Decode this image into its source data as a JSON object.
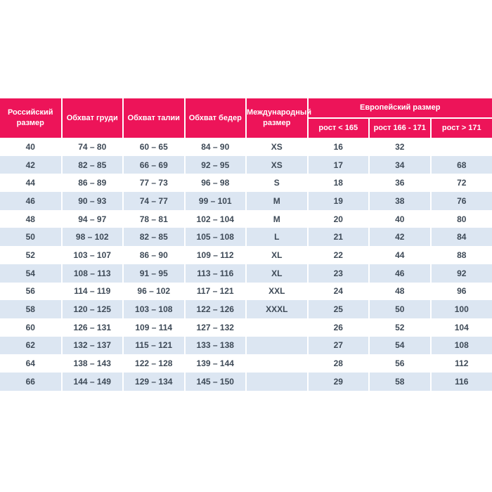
{
  "colors": {
    "header_bg": "#ed1459",
    "header_text": "#ffffff",
    "row_stripe_bg": "#dce6f2",
    "row_plain_bg": "#ffffff",
    "cell_text": "#3e4a57",
    "separator": "#ffffff"
  },
  "chart_data": {
    "type": "table",
    "columns": [
      "Российский размер",
      "Обхват груди",
      "Обхват талии",
      "Обхват бедер",
      "Международный размер",
      "Европейский размер"
    ],
    "height_subcolumns": [
      "рост < 165",
      "рост 166 - 171",
      "рост > 171"
    ],
    "rows": [
      [
        "40",
        "74 – 80",
        "60 – 65",
        "84 – 90",
        "XS",
        "16",
        "32",
        ""
      ],
      [
        "42",
        "82 – 85",
        "66 – 69",
        "92 – 95",
        "XS",
        "17",
        "34",
        "68"
      ],
      [
        "44",
        "86 – 89",
        "77 – 73",
        "96 – 98",
        "S",
        "18",
        "36",
        "72"
      ],
      [
        "46",
        "90 – 93",
        "74 – 77",
        "99 – 101",
        "M",
        "19",
        "38",
        "76"
      ],
      [
        "48",
        "94 – 97",
        "78 – 81",
        "102 – 104",
        "M",
        "20",
        "40",
        "80"
      ],
      [
        "50",
        "98 – 102",
        "82 – 85",
        "105 – 108",
        "L",
        "21",
        "42",
        "84"
      ],
      [
        "52",
        "103 – 107",
        "86 – 90",
        "109 – 112",
        "XL",
        "22",
        "44",
        "88"
      ],
      [
        "54",
        "108 – 113",
        "91 – 95",
        "113 – 116",
        "XL",
        "23",
        "46",
        "92"
      ],
      [
        "56",
        "114 – 119",
        "96 – 102",
        "117 – 121",
        "XXL",
        "24",
        "48",
        "96"
      ],
      [
        "58",
        "120 – 125",
        "103 – 108",
        "122 – 126",
        "XXXL",
        "25",
        "50",
        "100"
      ],
      [
        "60",
        "126 – 131",
        "109 – 114",
        "127 – 132",
        "",
        "26",
        "52",
        "104"
      ],
      [
        "62",
        "132 – 137",
        "115 – 121",
        "133 – 138",
        "",
        "27",
        "54",
        "108"
      ],
      [
        "64",
        "138 – 143",
        "122 – 128",
        "139 – 144",
        "",
        "28",
        "56",
        "112"
      ],
      [
        "66",
        "144 – 149",
        "129 – 134",
        "145 – 150",
        "",
        "29",
        "58",
        "116"
      ]
    ]
  }
}
